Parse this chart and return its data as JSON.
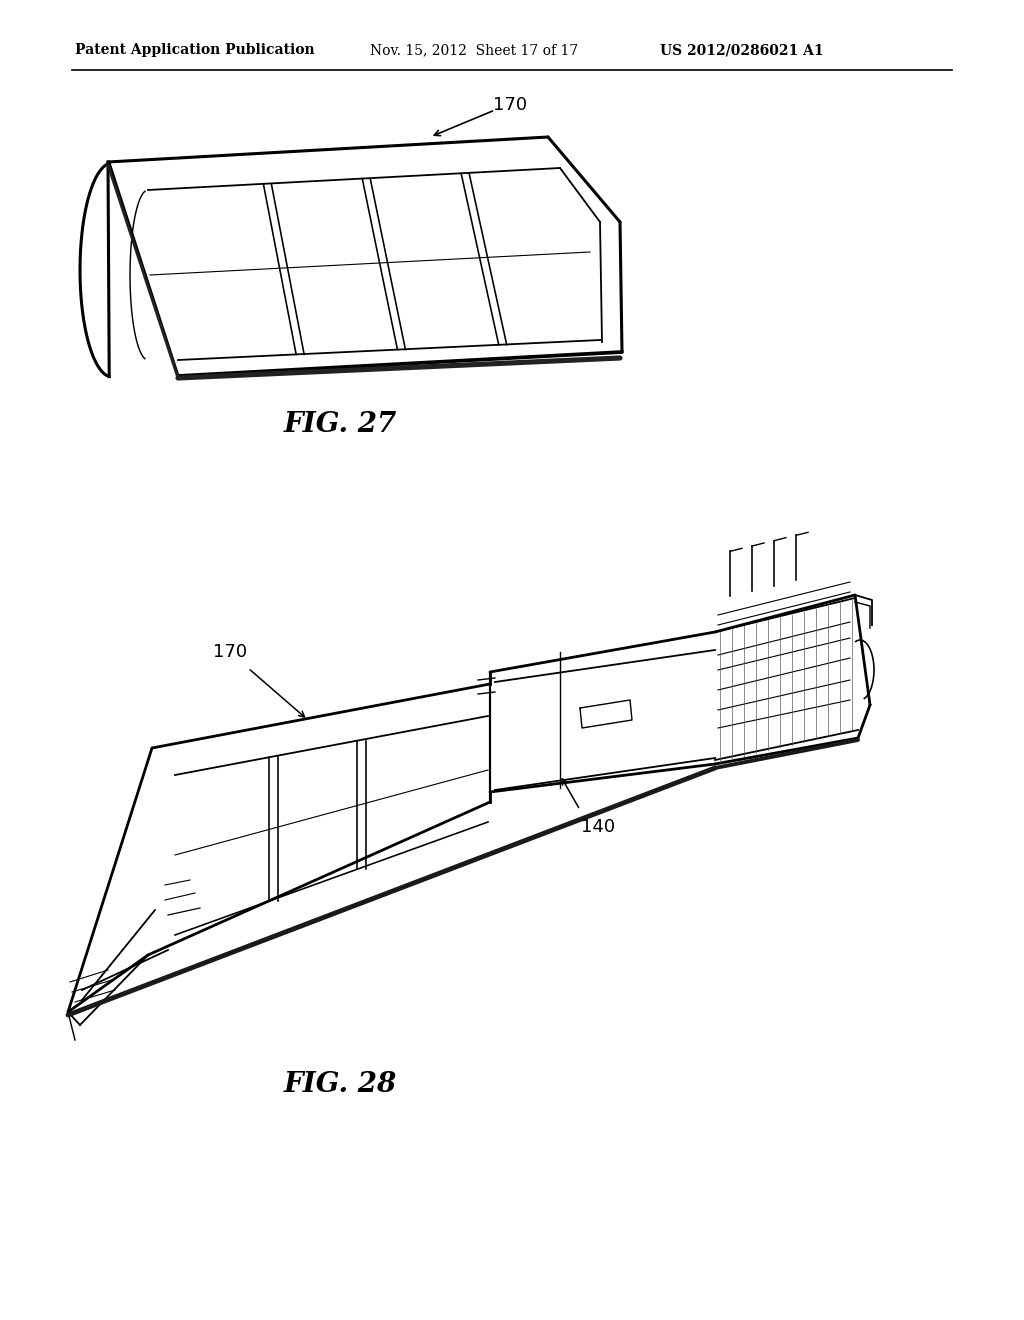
{
  "bg_color": "#ffffff",
  "header_left": "Patent Application Publication",
  "header_center": "Nov. 15, 2012  Sheet 17 of 17",
  "header_right": "US 2012/0286021 A1",
  "line_color": "#000000",
  "fig27_label": "FIG. 27",
  "fig28_label": "FIG. 28",
  "label_170_fig27": "170",
  "label_170_fig28": "170",
  "label_140_fig28": "140"
}
